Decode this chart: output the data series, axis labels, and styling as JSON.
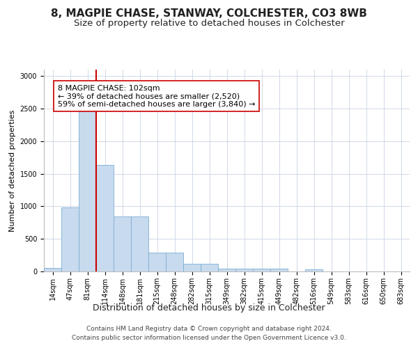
{
  "title1": "8, MAGPIE CHASE, STANWAY, COLCHESTER, CO3 8WB",
  "title2": "Size of property relative to detached houses in Colchester",
  "xlabel": "Distribution of detached houses by size in Colchester",
  "ylabel": "Number of detached properties",
  "bar_labels": [
    "14sqm",
    "47sqm",
    "81sqm",
    "114sqm",
    "148sqm",
    "181sqm",
    "215sqm",
    "248sqm",
    "282sqm",
    "315sqm",
    "349sqm",
    "382sqm",
    "415sqm",
    "449sqm",
    "482sqm",
    "516sqm",
    "549sqm",
    "583sqm",
    "616sqm",
    "650sqm",
    "683sqm"
  ],
  "bar_values": [
    50,
    980,
    2480,
    1640,
    840,
    840,
    285,
    285,
    118,
    118,
    48,
    48,
    48,
    48,
    0,
    28,
    0,
    0,
    0,
    0,
    0
  ],
  "bar_color": "#c8daee",
  "bar_edge_color": "#7aadd4",
  "vline_x": 2.5,
  "vline_color": "#cc0000",
  "annotation_text": "8 MAGPIE CHASE: 102sqm\n← 39% of detached houses are smaller (2,520)\n59% of semi-detached houses are larger (3,840) →",
  "ylim": [
    0,
    3100
  ],
  "yticks": [
    0,
    500,
    1000,
    1500,
    2000,
    2500,
    3000
  ],
  "footer_line1": "Contains HM Land Registry data © Crown copyright and database right 2024.",
  "footer_line2": "Contains public sector information licensed under the Open Government Licence v3.0.",
  "grid_color": "#d0d8e8",
  "title1_fontsize": 11,
  "title2_fontsize": 9.5,
  "xlabel_fontsize": 9,
  "ylabel_fontsize": 8,
  "tick_fontsize": 7,
  "annotation_fontsize": 8,
  "footer_fontsize": 6.5
}
